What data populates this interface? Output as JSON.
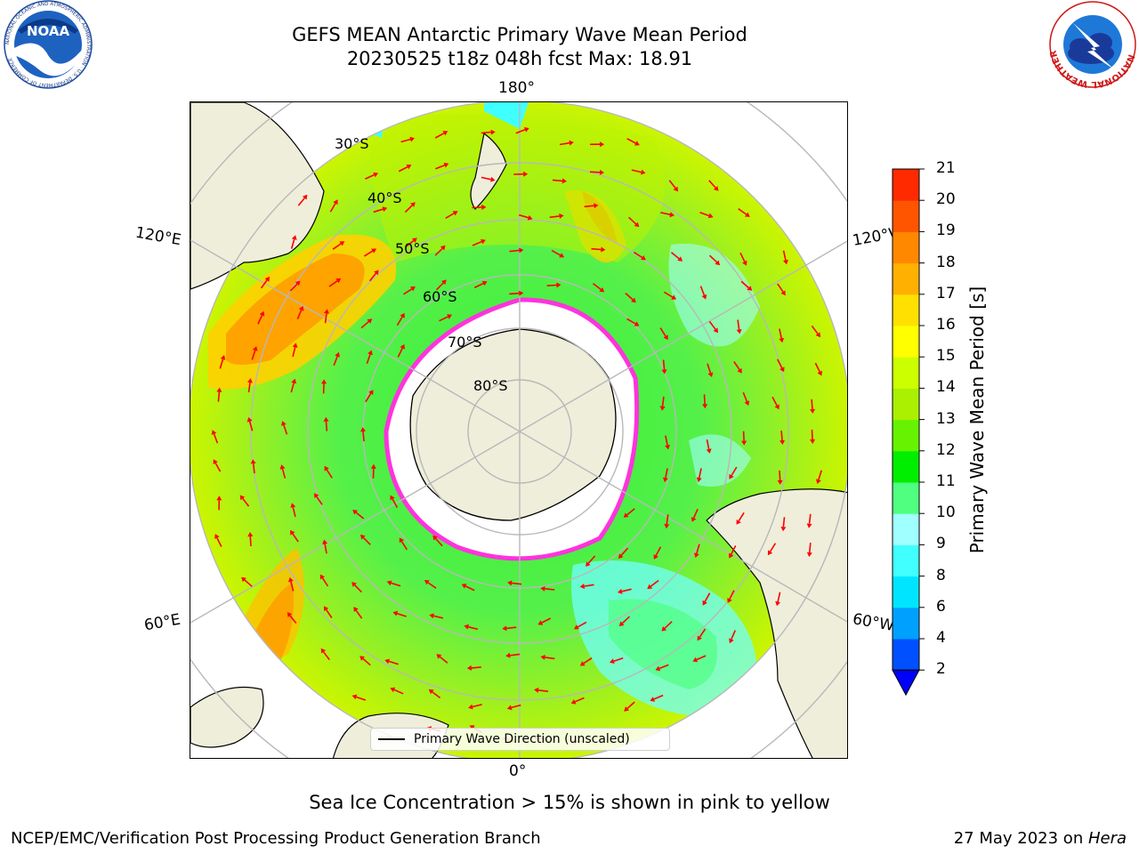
{
  "header": {
    "title_line1": "GEFS MEAN Antarctic Primary Wave Mean Period",
    "title_line2": "20230525 t18z 048h fcst   Max: 18.91"
  },
  "logos": {
    "noaa_text": "NOAA",
    "noaa_ring_text": "NATIONAL OCEANIC AND ATMOSPHERIC ADMINISTRATION · U.S. DEPARTMENT OF COMMERCE",
    "nws_ring_text": "NATIONAL WEATHER SERVICE"
  },
  "map": {
    "projection": "south-polar-stereographic",
    "longitude_labels": {
      "top": "180°",
      "bottom": "0°",
      "upper_left": "120°E",
      "lower_left": "60°E",
      "upper_right": "120°W",
      "lower_right": "60°W"
    },
    "latitude_labels": [
      "30°S",
      "40°S",
      "50°S",
      "60°S",
      "70°S",
      "80°S"
    ],
    "legend_label": "Primary Wave Direction (unscaled)",
    "colors": {
      "land": "#efeedb",
      "sea_ice_edge": "#ff33dd",
      "arrow": "#ff0000",
      "gridline": "#b8b8b8"
    }
  },
  "colorbar": {
    "label": "Primary Wave Mean Period [s]",
    "ticks": [
      "2",
      "4",
      "6",
      "8",
      "9",
      "10",
      "11",
      "12",
      "13",
      "14",
      "15",
      "16",
      "17",
      "18",
      "19",
      "20",
      "21"
    ],
    "colors": [
      "#0050ff",
      "#00a0ff",
      "#00e5ff",
      "#40ffff",
      "#a0ffff",
      "#50ff80",
      "#00ee00",
      "#66f200",
      "#aaf000",
      "#ccff00",
      "#ffff00",
      "#ffe000",
      "#ffb000",
      "#ff8800",
      "#ff5500",
      "#ff2a00"
    ],
    "extend_color": "#0000ff"
  },
  "caption": "Sea Ice Concentration > 15% is shown in pink to yellow",
  "footer": {
    "left": "NCEP/EMC/Verification Post Processing Product Generation Branch",
    "right_prefix": "27 May 2023 on ",
    "right_machine": "Hera"
  }
}
